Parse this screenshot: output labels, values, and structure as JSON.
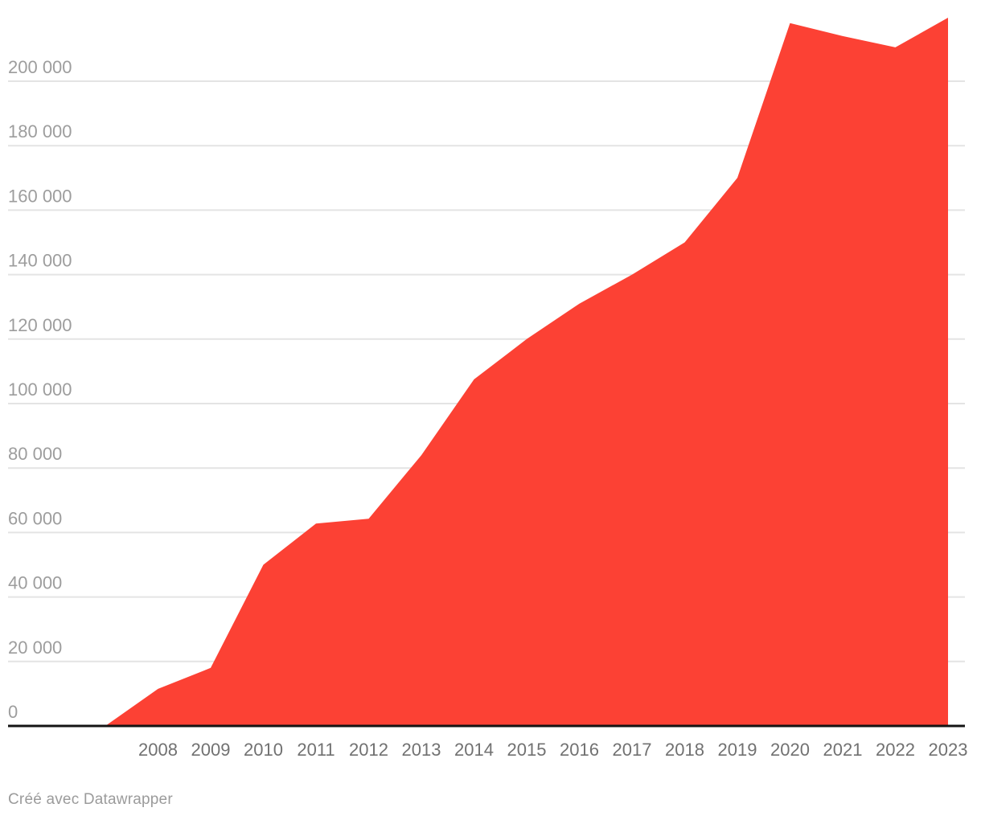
{
  "footer": {
    "attribution": "Créé avec Datawrapper"
  },
  "colors": {
    "area": "#fc4134",
    "grid": "#e4e4e4",
    "baseline": "#141414",
    "y_label": "#9d9d9d",
    "x_label": "#717171",
    "footer_text": "#9b9b9b",
    "background": "#ffffff"
  },
  "chart_data": {
    "type": "area",
    "title": "",
    "xlabel": "",
    "ylabel": "",
    "x": [
      2007,
      2008,
      2009,
      2010,
      2011,
      2012,
      2013,
      2014,
      2015,
      2016,
      2017,
      2018,
      2019,
      2020,
      2021,
      2022,
      2023
    ],
    "values": [
      0,
      11500,
      18000,
      50000,
      62800,
      64300,
      84000,
      107500,
      120000,
      131000,
      140000,
      150000,
      170000,
      218000,
      214000,
      210500,
      219700
    ],
    "x_axis_labels": [
      "2008",
      "2009",
      "2010",
      "2011",
      "2012",
      "2013",
      "2014",
      "2015",
      "2016",
      "2017",
      "2018",
      "2019",
      "2020",
      "2021",
      "2022",
      "2023"
    ],
    "y_ticks": [
      0,
      20000,
      40000,
      60000,
      80000,
      100000,
      120000,
      140000,
      160000,
      180000,
      200000
    ],
    "y_tick_labels": [
      "0",
      "20 000",
      "40 000",
      "60 000",
      "80 000",
      "100 000",
      "120 000",
      "140 000",
      "160 000",
      "180 000",
      "200 000"
    ],
    "ylim": [
      0,
      225000
    ],
    "grid": true,
    "legend_position": "none",
    "annotations": []
  }
}
